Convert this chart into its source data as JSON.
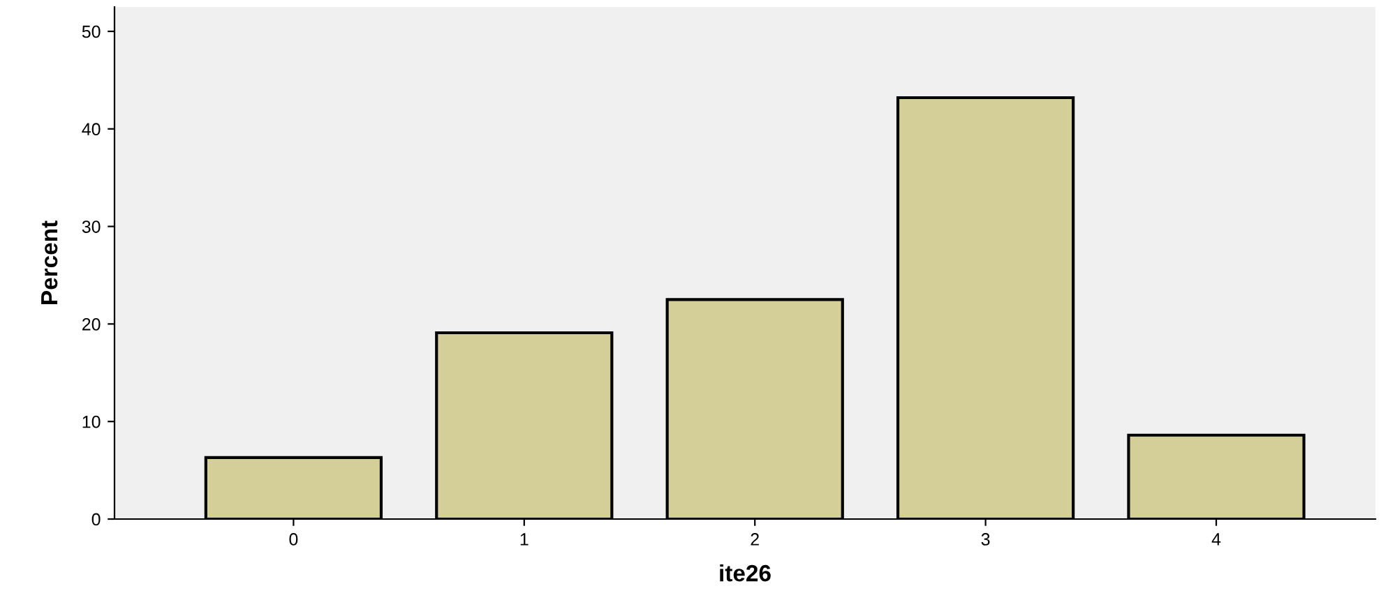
{
  "chart_data": {
    "type": "bar",
    "xlabel": "ite26",
    "ylabel": "Percent",
    "categories": [
      "0",
      "1",
      "2",
      "3",
      "4"
    ],
    "values": [
      6.3,
      19.1,
      22.5,
      43.2,
      8.6
    ],
    "color": "#d4cf98",
    "ylim": [
      0,
      52.5
    ],
    "yticks": [
      0,
      10,
      20,
      30,
      40,
      50
    ],
    "grid": false,
    "legend": false
  }
}
